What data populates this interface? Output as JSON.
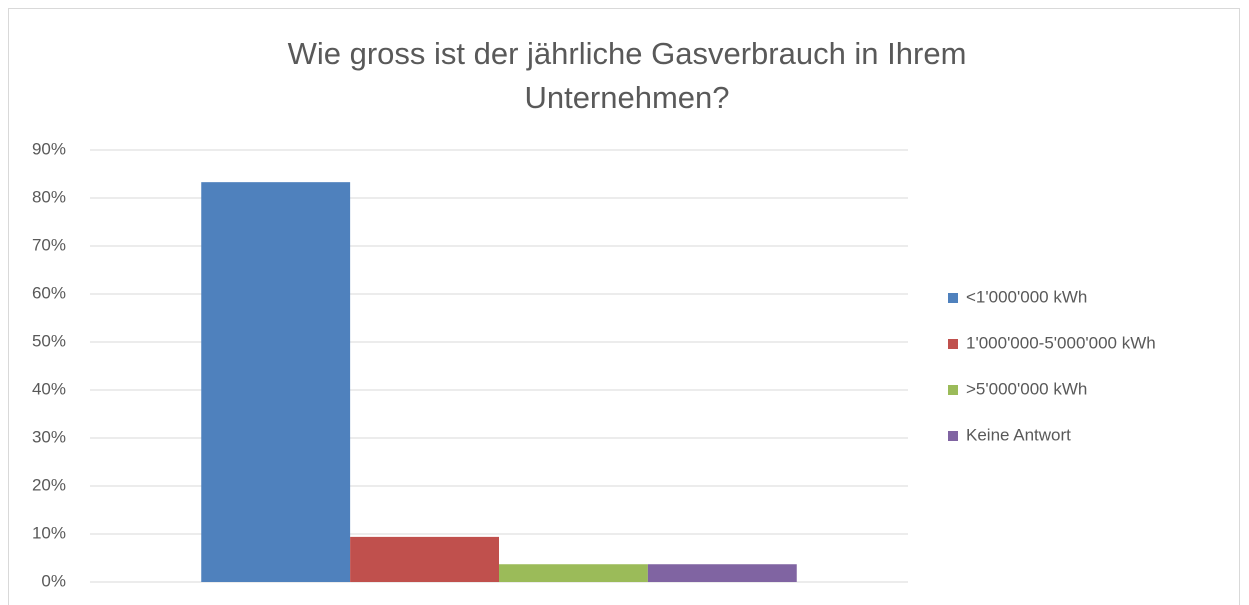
{
  "chart_data": {
    "type": "bar",
    "title": "Wie gross ist der jährliche Gasverbrauch in Ihrem Unternehmen?",
    "categories": [
      null
    ],
    "series": [
      {
        "name": "<1'000'000 kWh",
        "color": "#4f81bd",
        "values": [
          83.3
        ]
      },
      {
        "name": "1'000'000-5'000'000 kWh",
        "color": "#c0504d",
        "values": [
          9.4
        ]
      },
      {
        "name": ">5'000'000 kWh",
        "color": "#9bbb59",
        "values": [
          3.7
        ]
      },
      {
        "name": "Keine Antwort",
        "color": "#8064a2",
        "values": [
          3.7
        ]
      }
    ],
    "ylim": [
      0,
      90
    ],
    "yticks": [
      {
        "value": 0,
        "label": "0%"
      },
      {
        "value": 10,
        "label": "10%"
      },
      {
        "value": 20,
        "label": "20%"
      },
      {
        "value": 30,
        "label": "30%"
      },
      {
        "value": 40,
        "label": "40%"
      },
      {
        "value": 50,
        "label": "50%"
      },
      {
        "value": 60,
        "label": "60%"
      },
      {
        "value": 70,
        "label": "70%"
      },
      {
        "value": 80,
        "label": "80%"
      },
      {
        "value": 90,
        "label": "90%"
      }
    ],
    "grid": true,
    "legend": "right"
  }
}
